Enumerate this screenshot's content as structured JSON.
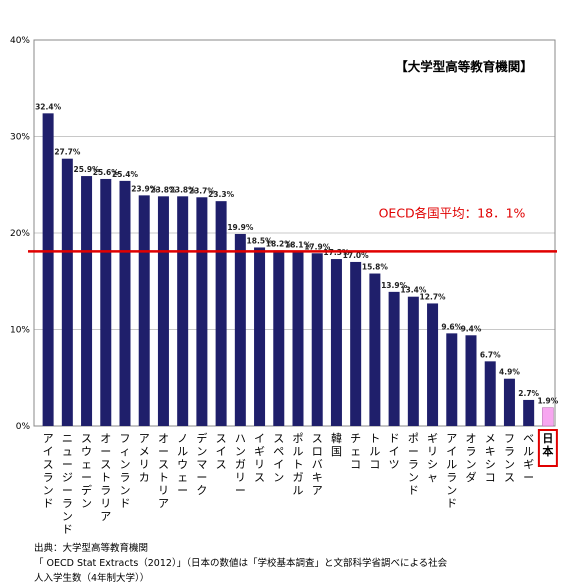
{
  "chart_data": {
    "type": "bar",
    "title": "【大学型高等教育機関】",
    "xlabel": "",
    "ylabel": "",
    "ylim": [
      0,
      40
    ],
    "yticks": [
      "0%",
      "10%",
      "20%",
      "30%",
      "40%"
    ],
    "grid": true,
    "categories": [
      "アイスランド",
      "ニュージーランド",
      "スウェーデン",
      "オーストラリア",
      "フィンランド",
      "アメリカ",
      "オーストリア",
      "ノルウェー",
      "デンマーク",
      "スイス",
      "ハンガリー",
      "イギリス",
      "スペイン",
      "ポルトガル",
      "スロバキア",
      "韓国",
      "チェコ",
      "トルコ",
      "ドイツ",
      "ポーランド",
      "ギリシャ",
      "アイルランド",
      "オランダ",
      "メキシコ",
      "フランス",
      "ベルギー",
      "日本"
    ],
    "values": [
      32.4,
      27.7,
      25.9,
      25.6,
      25.4,
      23.9,
      23.8,
      23.8,
      23.7,
      23.3,
      19.9,
      18.5,
      18.2,
      18.1,
      17.9,
      17.3,
      17.0,
      15.8,
      13.9,
      13.4,
      12.7,
      9.6,
      9.4,
      6.7,
      4.9,
      2.7,
      1.9
    ],
    "value_labels": [
      "32.4%",
      "27.7%",
      "25.9%",
      "25.6%",
      "25.4%",
      "23.9%",
      "23.8%",
      "23.8%",
      "23.7%",
      "23.3%",
      "19.9%",
      "18.5%",
      "18.2%",
      "18.1%",
      "17.9%",
      "17.3%",
      "17.0%",
      "15.8%",
      "13.9%",
      "13.4%",
      "12.7%",
      "9.6%",
      "9.4%",
      "6.7%",
      "4.9%",
      "2.7%",
      "1.9%"
    ],
    "average_line": {
      "value": 18.1,
      "label": "OECD各国平均：18．1%",
      "color": "#e00000"
    },
    "highlight_category": "日本",
    "colors": {
      "bar": "#1f1f6b",
      "highlight_bar": "#f7a6f0",
      "highlight_box": "#e00000",
      "grid": "#c8c8c8"
    }
  },
  "source": {
    "line1": "出典：大学型高等教育機関",
    "line2": "「 OECD Stat Extracts（2012）」（日本の数値は「学校基本調査」と文部科学省調べによる社会",
    "line3": "人入学生数（4年制大学））"
  }
}
